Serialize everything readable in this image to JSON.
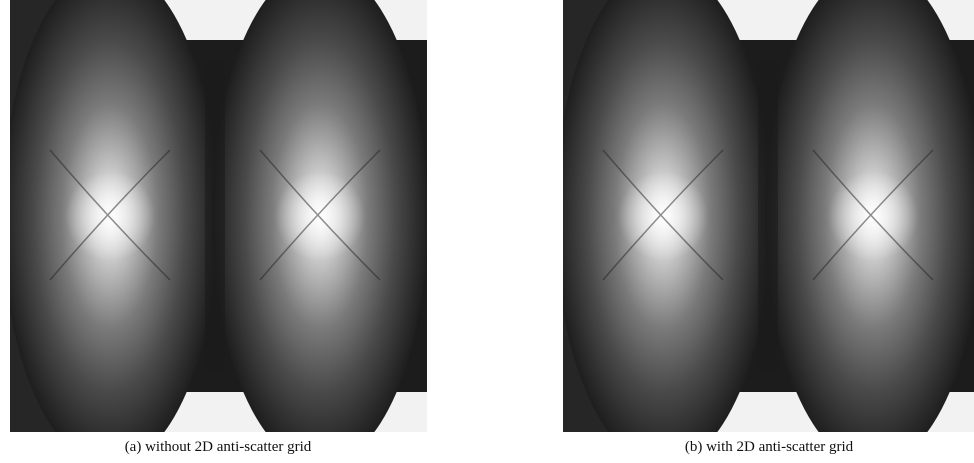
{
  "figure": {
    "panels": [
      {
        "caption": "(a) without 2D anti-scatter grid"
      },
      {
        "caption": "(b) with 2D anti-scatter grid"
      }
    ]
  }
}
